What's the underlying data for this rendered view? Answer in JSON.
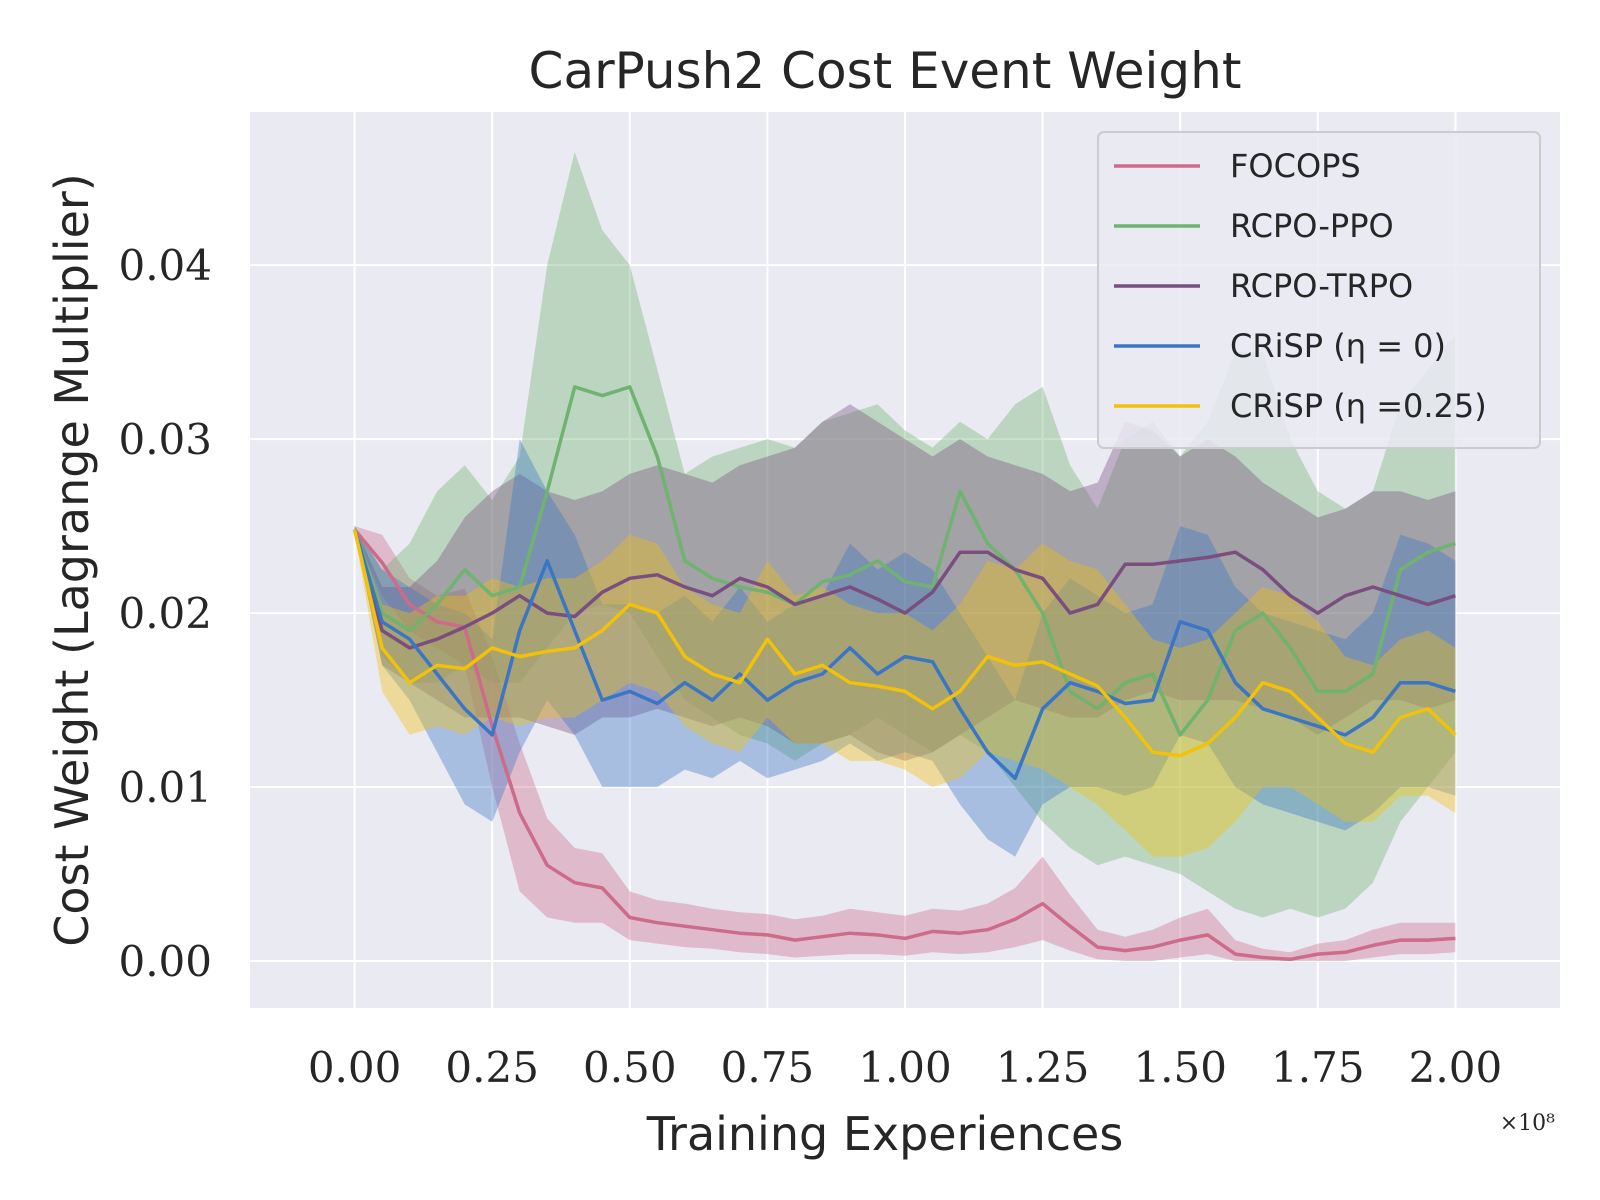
{
  "chart_data": {
    "type": "line",
    "title": "CarPush2 Cost Event Weight",
    "xlabel": "Training Experiences",
    "ylabel": "Cost Weight (Lagrange Multiplier)",
    "x_exponent_label": "×10⁸",
    "xlim": [
      -0.19,
      2.19
    ],
    "ylim": [
      -0.0027,
      0.0488
    ],
    "x_ticks": [
      0.0,
      0.25,
      0.5,
      0.75,
      1.0,
      1.25,
      1.5,
      1.75,
      2.0
    ],
    "x_tick_labels": [
      "0.00",
      "0.25",
      "0.50",
      "0.75",
      "1.00",
      "1.25",
      "1.50",
      "1.75",
      "2.00"
    ],
    "y_ticks": [
      0.0,
      0.01,
      0.02,
      0.03,
      0.04
    ],
    "y_tick_labels": [
      "0.00",
      "0.01",
      "0.02",
      "0.03",
      "0.04"
    ],
    "grid": true,
    "legend_position": "top-right",
    "x": [
      0.0,
      0.05,
      0.1,
      0.15,
      0.2,
      0.25,
      0.3,
      0.35,
      0.4,
      0.45,
      0.5,
      0.55,
      0.6,
      0.65,
      0.7,
      0.75,
      0.8,
      0.85,
      0.9,
      0.95,
      1.0,
      1.05,
      1.1,
      1.15,
      1.2,
      1.25,
      1.3,
      1.35,
      1.4,
      1.45,
      1.5,
      1.55,
      1.6,
      1.65,
      1.7,
      1.75,
      1.8,
      1.85,
      1.9,
      1.95,
      2.0
    ],
    "series": [
      {
        "name": "FOCOPS",
        "color": "#cc6b8a",
        "values": [
          0.0248,
          0.0229,
          0.0205,
          0.0195,
          0.0192,
          0.0135,
          0.0085,
          0.0055,
          0.0045,
          0.0042,
          0.0025,
          0.0022,
          0.002,
          0.0018,
          0.0016,
          0.0015,
          0.0012,
          0.0014,
          0.0016,
          0.0015,
          0.0013,
          0.0017,
          0.0016,
          0.0018,
          0.0024,
          0.0033,
          0.002,
          0.0008,
          0.0006,
          0.0008,
          0.0012,
          0.0015,
          0.0004,
          0.0002,
          0.0001,
          0.0004,
          0.0005,
          0.0009,
          0.0012,
          0.0012,
          0.0013
        ],
        "lower": [
          0.0246,
          0.021,
          0.019,
          0.018,
          0.017,
          0.01,
          0.004,
          0.0025,
          0.0022,
          0.0022,
          0.0012,
          0.001,
          0.0008,
          0.0007,
          0.0005,
          0.0004,
          0.0002,
          0.0003,
          0.0004,
          0.0004,
          0.0003,
          0.0005,
          0.0004,
          0.0005,
          0.0008,
          0.0012,
          0.0006,
          0.0001,
          0.0,
          0.0,
          0.0002,
          0.0004,
          0.0,
          0.0,
          0.0,
          0.0,
          0.0,
          0.0002,
          0.0004,
          0.0004,
          0.0005
        ],
        "upper": [
          0.025,
          0.0245,
          0.022,
          0.021,
          0.0214,
          0.0175,
          0.0125,
          0.0082,
          0.0065,
          0.0062,
          0.004,
          0.0035,
          0.0033,
          0.003,
          0.0028,
          0.0027,
          0.0024,
          0.0026,
          0.003,
          0.0028,
          0.0026,
          0.003,
          0.0029,
          0.0033,
          0.0042,
          0.006,
          0.0038,
          0.0018,
          0.0014,
          0.0018,
          0.0025,
          0.003,
          0.0012,
          0.0007,
          0.0005,
          0.001,
          0.0012,
          0.0018,
          0.0022,
          0.0022,
          0.0022
        ]
      },
      {
        "name": "RCPO-PPO",
        "color": "#6fb36f",
        "values": [
          0.0248,
          0.02,
          0.019,
          0.0205,
          0.0225,
          0.021,
          0.0215,
          0.027,
          0.033,
          0.0325,
          0.033,
          0.029,
          0.023,
          0.022,
          0.0215,
          0.0212,
          0.0205,
          0.0218,
          0.0222,
          0.023,
          0.0218,
          0.0215,
          0.027,
          0.024,
          0.0225,
          0.02,
          0.0155,
          0.0145,
          0.016,
          0.0165,
          0.013,
          0.015,
          0.019,
          0.02,
          0.018,
          0.0155,
          0.0155,
          0.0165,
          0.0225,
          0.0235,
          0.024
        ],
        "lower": [
          0.0246,
          0.0175,
          0.016,
          0.016,
          0.017,
          0.016,
          0.016,
          0.018,
          0.02,
          0.0205,
          0.02,
          0.0175,
          0.015,
          0.014,
          0.013,
          0.0125,
          0.0115,
          0.0125,
          0.013,
          0.014,
          0.013,
          0.012,
          0.013,
          0.012,
          0.01,
          0.008,
          0.0065,
          0.0055,
          0.006,
          0.0055,
          0.005,
          0.004,
          0.003,
          0.0025,
          0.003,
          0.0025,
          0.003,
          0.0045,
          0.008,
          0.01,
          0.012
        ],
        "upper": [
          0.025,
          0.0225,
          0.024,
          0.027,
          0.0285,
          0.0265,
          0.029,
          0.04,
          0.0465,
          0.042,
          0.04,
          0.034,
          0.028,
          0.029,
          0.0295,
          0.03,
          0.0295,
          0.031,
          0.0315,
          0.032,
          0.0305,
          0.0295,
          0.031,
          0.03,
          0.032,
          0.033,
          0.0285,
          0.026,
          0.03,
          0.031,
          0.029,
          0.031,
          0.035,
          0.035,
          0.03,
          0.027,
          0.026,
          0.027,
          0.032,
          0.034,
          0.036
        ]
      },
      {
        "name": "RCPO-TRPO",
        "color": "#7a4e7e",
        "values": [
          0.0248,
          0.019,
          0.018,
          0.0185,
          0.0192,
          0.02,
          0.021,
          0.02,
          0.0198,
          0.0212,
          0.022,
          0.0222,
          0.0215,
          0.021,
          0.022,
          0.0215,
          0.0205,
          0.021,
          0.0215,
          0.0208,
          0.02,
          0.0212,
          0.0235,
          0.0235,
          0.0225,
          0.022,
          0.02,
          0.0205,
          0.0228,
          0.0228,
          0.023,
          0.0232,
          0.0235,
          0.0225,
          0.021,
          0.02,
          0.021,
          0.0215,
          0.021,
          0.0205,
          0.021
        ],
        "lower": [
          0.0246,
          0.017,
          0.016,
          0.015,
          0.014,
          0.014,
          0.014,
          0.0135,
          0.013,
          0.014,
          0.014,
          0.0145,
          0.014,
          0.0135,
          0.014,
          0.0135,
          0.0125,
          0.0125,
          0.013,
          0.012,
          0.0115,
          0.012,
          0.013,
          0.014,
          0.015,
          0.0145,
          0.014,
          0.014,
          0.015,
          0.0155,
          0.015,
          0.015,
          0.015,
          0.0145,
          0.014,
          0.013,
          0.014,
          0.015,
          0.015,
          0.0145,
          0.015
        ],
        "upper": [
          0.025,
          0.0215,
          0.0215,
          0.023,
          0.0255,
          0.027,
          0.028,
          0.027,
          0.0265,
          0.027,
          0.028,
          0.0285,
          0.028,
          0.0275,
          0.0285,
          0.029,
          0.0295,
          0.031,
          0.032,
          0.031,
          0.03,
          0.029,
          0.03,
          0.029,
          0.0285,
          0.028,
          0.027,
          0.0275,
          0.031,
          0.0305,
          0.029,
          0.03,
          0.029,
          0.0275,
          0.0265,
          0.0255,
          0.026,
          0.027,
          0.027,
          0.0265,
          0.027
        ]
      },
      {
        "name": "CRiSP (η = 0)",
        "color": "#3a76c4",
        "values": [
          0.0248,
          0.0195,
          0.0185,
          0.0165,
          0.0145,
          0.013,
          0.019,
          0.023,
          0.019,
          0.015,
          0.0155,
          0.0148,
          0.016,
          0.015,
          0.0165,
          0.015,
          0.016,
          0.0165,
          0.018,
          0.0165,
          0.0175,
          0.0172,
          0.0145,
          0.012,
          0.0105,
          0.0145,
          0.016,
          0.0155,
          0.0148,
          0.015,
          0.0195,
          0.019,
          0.016,
          0.0145,
          0.014,
          0.0135,
          0.013,
          0.014,
          0.016,
          0.016,
          0.0155
        ],
        "lower": [
          0.0246,
          0.017,
          0.015,
          0.012,
          0.009,
          0.008,
          0.012,
          0.015,
          0.013,
          0.01,
          0.01,
          0.01,
          0.011,
          0.0105,
          0.0115,
          0.0105,
          0.011,
          0.0115,
          0.0125,
          0.0115,
          0.012,
          0.0115,
          0.009,
          0.007,
          0.006,
          0.009,
          0.01,
          0.01,
          0.0095,
          0.01,
          0.013,
          0.0125,
          0.01,
          0.009,
          0.0085,
          0.008,
          0.0075,
          0.0085,
          0.01,
          0.01,
          0.0095
        ],
        "upper": [
          0.025,
          0.0225,
          0.0215,
          0.0205,
          0.02,
          0.0185,
          0.03,
          0.027,
          0.0245,
          0.0205,
          0.0205,
          0.02,
          0.021,
          0.0195,
          0.0215,
          0.0195,
          0.0205,
          0.021,
          0.024,
          0.0225,
          0.0235,
          0.0225,
          0.02,
          0.0175,
          0.015,
          0.02,
          0.022,
          0.021,
          0.02,
          0.0205,
          0.025,
          0.0245,
          0.0215,
          0.02,
          0.0195,
          0.019,
          0.0185,
          0.02,
          0.0245,
          0.024,
          0.023
        ]
      },
      {
        "name": "CRiSP (η =0.25)",
        "color": "#f2c10a",
        "values": [
          0.0248,
          0.018,
          0.016,
          0.017,
          0.0168,
          0.018,
          0.0175,
          0.0178,
          0.018,
          0.019,
          0.0205,
          0.02,
          0.0175,
          0.0165,
          0.016,
          0.0185,
          0.0165,
          0.017,
          0.016,
          0.0158,
          0.0155,
          0.0145,
          0.0155,
          0.0175,
          0.017,
          0.0172,
          0.0165,
          0.0158,
          0.014,
          0.012,
          0.0118,
          0.0125,
          0.014,
          0.016,
          0.0155,
          0.014,
          0.0125,
          0.012,
          0.014,
          0.0145,
          0.013
        ],
        "lower": [
          0.0246,
          0.0155,
          0.013,
          0.0135,
          0.013,
          0.014,
          0.0135,
          0.014,
          0.014,
          0.015,
          0.016,
          0.0155,
          0.0135,
          0.0125,
          0.012,
          0.014,
          0.0125,
          0.0125,
          0.0115,
          0.0115,
          0.011,
          0.01,
          0.0105,
          0.012,
          0.0115,
          0.011,
          0.01,
          0.009,
          0.0075,
          0.006,
          0.006,
          0.0065,
          0.008,
          0.01,
          0.01,
          0.009,
          0.008,
          0.008,
          0.0095,
          0.0095,
          0.0085
        ],
        "upper": [
          0.025,
          0.0205,
          0.02,
          0.021,
          0.021,
          0.022,
          0.0215,
          0.022,
          0.022,
          0.023,
          0.0245,
          0.024,
          0.0215,
          0.0205,
          0.02,
          0.023,
          0.021,
          0.0215,
          0.0205,
          0.02,
          0.02,
          0.019,
          0.0205,
          0.023,
          0.0225,
          0.024,
          0.023,
          0.0225,
          0.0205,
          0.0185,
          0.018,
          0.0185,
          0.02,
          0.0215,
          0.021,
          0.0195,
          0.0175,
          0.017,
          0.0185,
          0.019,
          0.018
        ]
      }
    ]
  }
}
